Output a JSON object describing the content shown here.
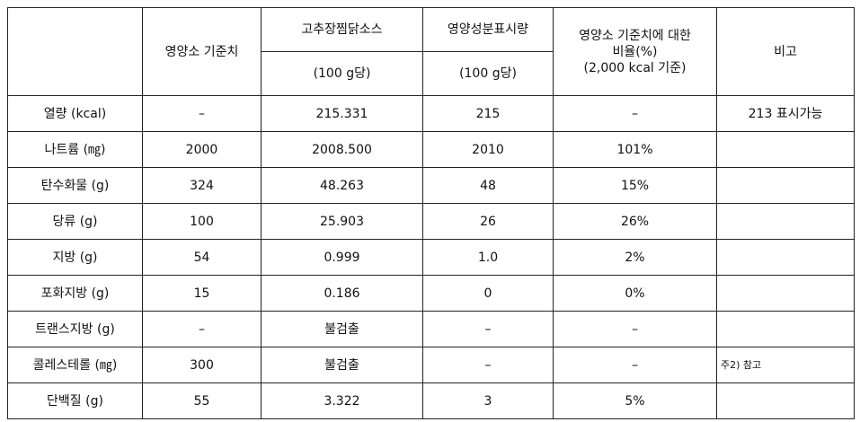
{
  "table": {
    "header": {
      "reference": "영양소 기준치",
      "product": "고추장찜닭소스",
      "labeled": "영양성분표시량",
      "per_product": "(100 g당)",
      "per_labeled": "(100 g당)",
      "ratio": [
        "영양소 기준치에 대한",
        "비율(%)",
        "(2,000 kcal 기준)"
      ],
      "remark": "비고"
    },
    "rows": [
      [
        "열량 (kcal)",
        "–",
        "215.331",
        "215",
        "–",
        "213 표시가능"
      ],
      [
        "나트륨 (㎎)",
        "2000",
        "2008.500",
        "2010",
        "101%",
        null
      ],
      [
        "탄수화물 (g)",
        "324",
        "48.263",
        "48",
        "15%",
        null
      ],
      [
        "당류 (g)",
        "100",
        "25.903",
        "26",
        "26%",
        null
      ],
      [
        "지방 (g)",
        "54",
        "0.999",
        "1.0",
        "2%",
        null
      ],
      [
        "포화지방 (g)",
        "15",
        "0.186",
        "0",
        "0%",
        null
      ],
      [
        "트랜스지방 (g)",
        "–",
        "불검출",
        "–",
        "–",
        null
      ],
      [
        "콜레스테롤 (㎎)",
        "300",
        "불검출",
        "–",
        "–",
        "주2) 참고"
      ],
      [
        "단백질 (g)",
        "55",
        "3.322",
        "3",
        "5%",
        null
      ]
    ]
  }
}
